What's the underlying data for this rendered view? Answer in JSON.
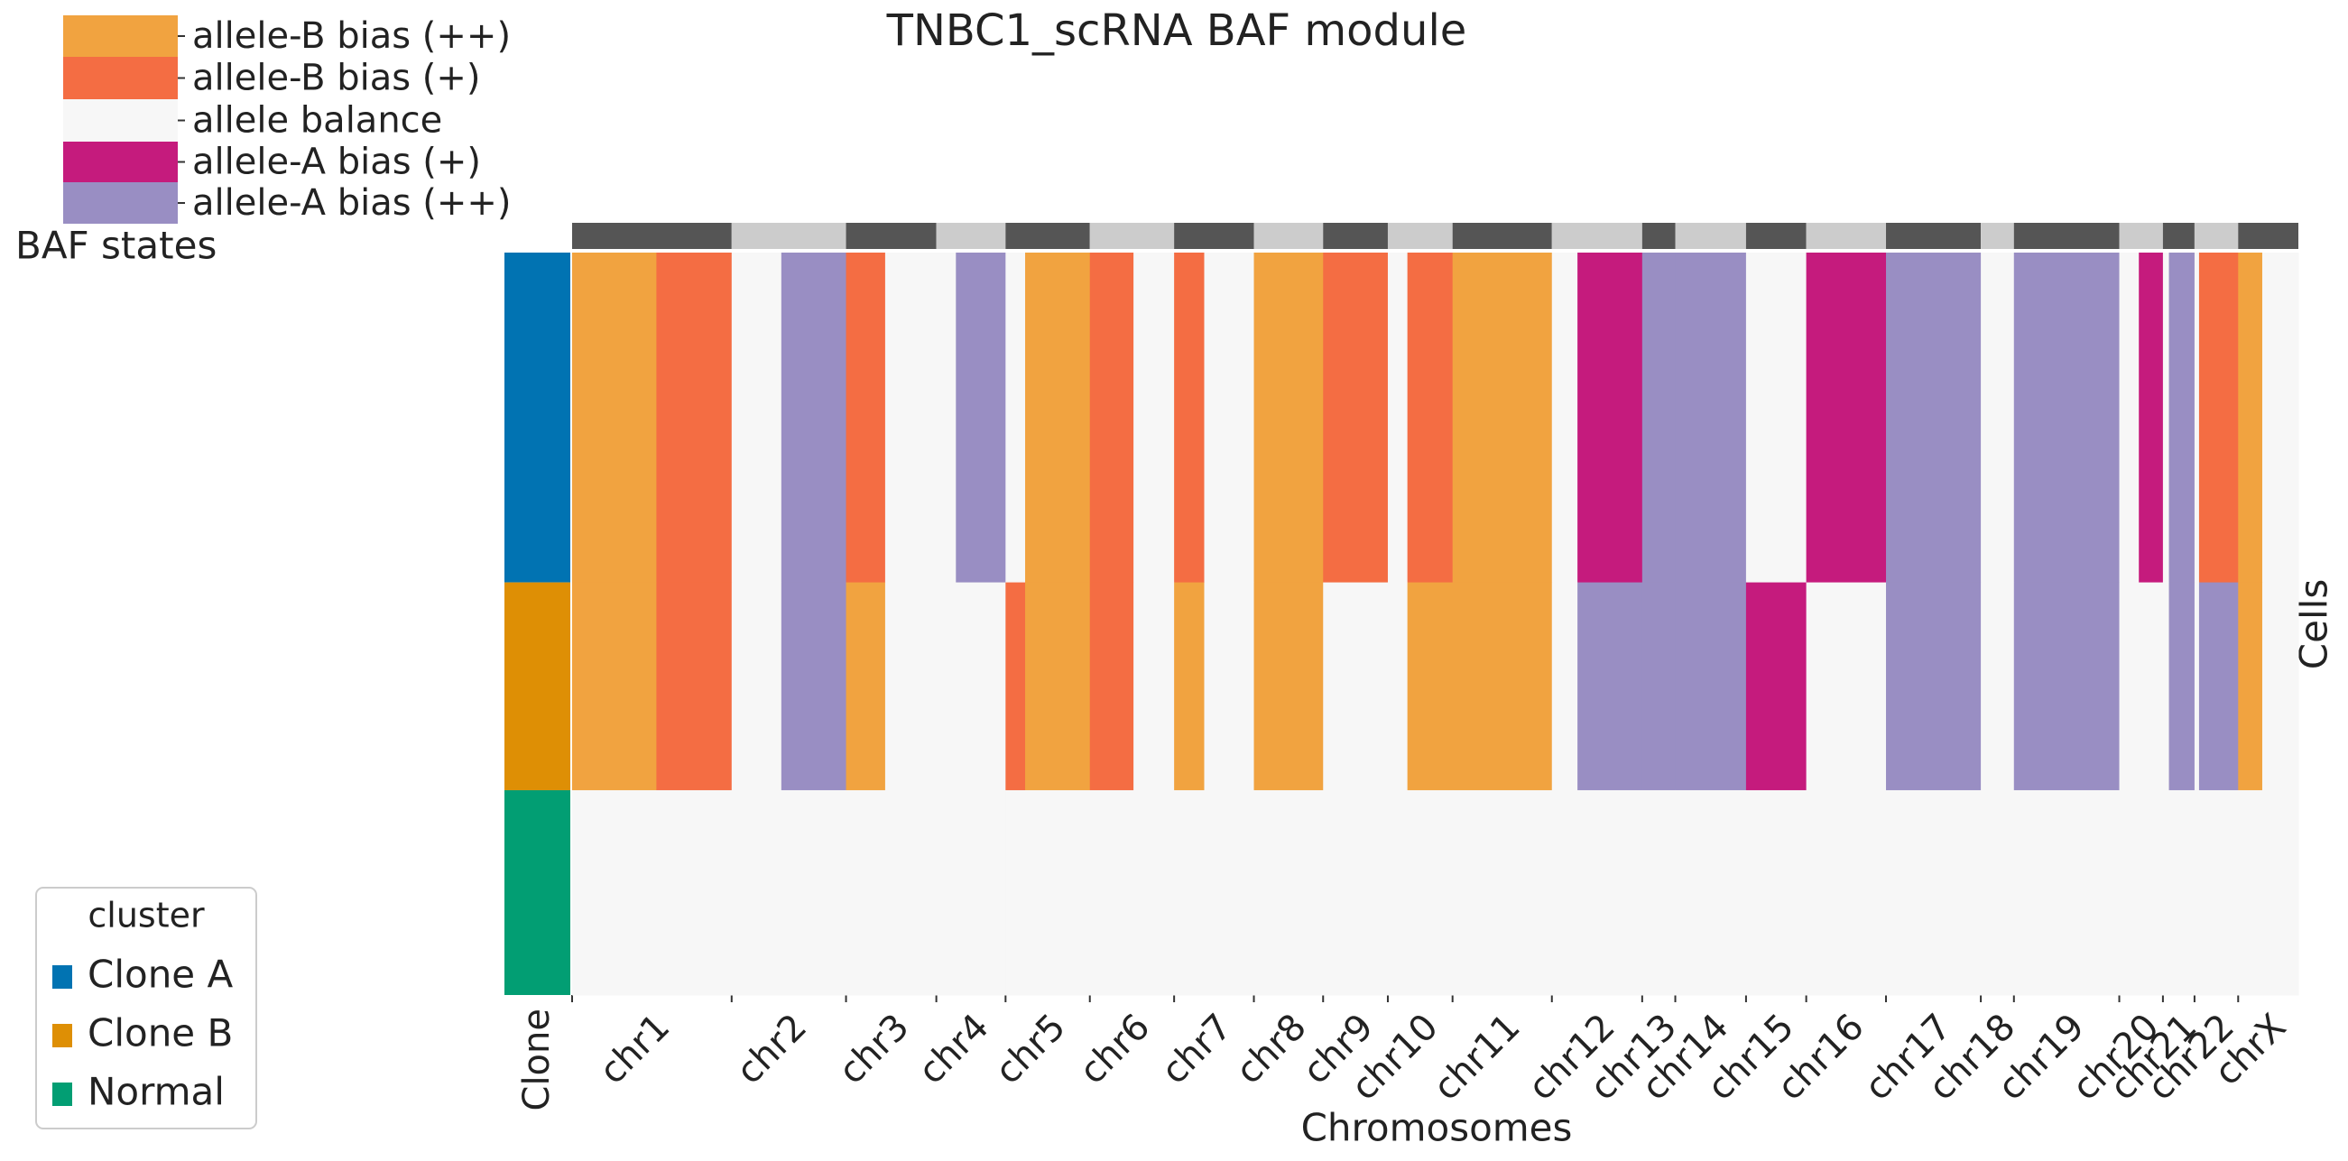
{
  "chart_data": {
    "type": "heatmap",
    "title": "TNBC1_scRNA BAF module",
    "xlabel": "Chromosomes",
    "ylabel": "Cells",
    "cluster_column_label": "Clone",
    "states_title": "BAF states",
    "states": [
      {
        "name": "allele-B bias (++)",
        "color": "#f1a340"
      },
      {
        "name": "allele-B bias (+)",
        "color": "#f46d43"
      },
      {
        "name": "allele balance",
        "color": "#f7f7f7"
      },
      {
        "name": "allele-A bias (+)",
        "color": "#c51b7d"
      },
      {
        "name": "allele-A bias (++)",
        "color": "#998ec3"
      }
    ],
    "chromosomes": [
      {
        "name": "chr1",
        "bins": 106
      },
      {
        "name": "chr2",
        "bins": 76
      },
      {
        "name": "chr3",
        "bins": 60
      },
      {
        "name": "chr4",
        "bins": 46
      },
      {
        "name": "chr5",
        "bins": 56
      },
      {
        "name": "chr6",
        "bins": 56
      },
      {
        "name": "chr7",
        "bins": 53
      },
      {
        "name": "chr8",
        "bins": 46
      },
      {
        "name": "chr9",
        "bins": 43
      },
      {
        "name": "chr10",
        "bins": 43
      },
      {
        "name": "chr11",
        "bins": 66
      },
      {
        "name": "chr12",
        "bins": 60
      },
      {
        "name": "chr13",
        "bins": 22
      },
      {
        "name": "chr14",
        "bins": 47
      },
      {
        "name": "chr15",
        "bins": 40
      },
      {
        "name": "chr16",
        "bins": 53
      },
      {
        "name": "chr17",
        "bins": 63
      },
      {
        "name": "chr18",
        "bins": 22
      },
      {
        "name": "chr19",
        "bins": 70
      },
      {
        "name": "chr20",
        "bins": 29
      },
      {
        "name": "chr21",
        "bins": 21
      },
      {
        "name": "chr22",
        "bins": 29
      },
      {
        "name": "chrX",
        "bins": 40
      }
    ],
    "cluster_title": "cluster",
    "clusters": [
      {
        "name": "Clone A",
        "color": "#0173b2",
        "cells": 219,
        "segments": [
          [
            [
              56,
              0
            ],
            [
              50,
              1
            ]
          ],
          [
            [
              33,
              2
            ],
            [
              43,
              4
            ]
          ],
          [
            [
              26,
              1
            ],
            [
              34,
              2
            ]
          ],
          [
            [
              13,
              2
            ],
            [
              33,
              4
            ]
          ],
          [
            [
              13,
              2
            ],
            [
              43,
              0
            ]
          ],
          [
            [
              29,
              1
            ],
            [
              27,
              2
            ]
          ],
          [
            [
              20,
              1
            ],
            [
              33,
              2
            ]
          ],
          [
            [
              46,
              0
            ]
          ],
          [
            [
              43,
              1
            ]
          ],
          [
            [
              13,
              2
            ],
            [
              30,
              1
            ]
          ],
          [
            [
              66,
              0
            ]
          ],
          [
            [
              17,
              2
            ],
            [
              43,
              3
            ]
          ],
          [
            [
              22,
              4
            ]
          ],
          [
            [
              47,
              4
            ]
          ],
          [
            [
              40,
              2
            ]
          ],
          [
            [
              53,
              3
            ]
          ],
          [
            [
              63,
              4
            ]
          ],
          [
            [
              22,
              2
            ]
          ],
          [
            [
              70,
              4
            ]
          ],
          [
            [
              13,
              2
            ],
            [
              16,
              3
            ]
          ],
          [
            [
              4,
              2
            ],
            [
              17,
              4
            ]
          ],
          [
            [
              3,
              2
            ],
            [
              26,
              1
            ]
          ],
          [
            [
              16,
              0
            ],
            [
              24,
              2
            ]
          ]
        ]
      },
      {
        "name": "Clone B",
        "color": "#de8f05",
        "cells": 138,
        "segments": [
          [
            [
              56,
              0
            ],
            [
              50,
              1
            ]
          ],
          [
            [
              33,
              2
            ],
            [
              43,
              4
            ]
          ],
          [
            [
              26,
              0
            ],
            [
              34,
              2
            ]
          ],
          [
            [
              46,
              2
            ]
          ],
          [
            [
              13,
              1
            ],
            [
              43,
              0
            ]
          ],
          [
            [
              29,
              1
            ],
            [
              27,
              2
            ]
          ],
          [
            [
              20,
              0
            ],
            [
              33,
              2
            ]
          ],
          [
            [
              46,
              0
            ]
          ],
          [
            [
              43,
              2
            ]
          ],
          [
            [
              13,
              2
            ],
            [
              30,
              0
            ]
          ],
          [
            [
              66,
              0
            ]
          ],
          [
            [
              17,
              2
            ],
            [
              43,
              4
            ]
          ],
          [
            [
              22,
              4
            ]
          ],
          [
            [
              47,
              4
            ]
          ],
          [
            [
              40,
              3
            ]
          ],
          [
            [
              53,
              2
            ]
          ],
          [
            [
              63,
              4
            ]
          ],
          [
            [
              22,
              2
            ]
          ],
          [
            [
              70,
              4
            ]
          ],
          [
            [
              29,
              2
            ]
          ],
          [
            [
              4,
              2
            ],
            [
              17,
              4
            ]
          ],
          [
            [
              3,
              2
            ],
            [
              26,
              4
            ]
          ],
          [
            [
              16,
              0
            ],
            [
              24,
              2
            ]
          ]
        ]
      },
      {
        "name": "Normal",
        "color": "#029e73",
        "cells": 136,
        "segments": [
          [
            [
              106,
              2
            ]
          ],
          [
            [
              76,
              2
            ]
          ],
          [
            [
              60,
              2
            ]
          ],
          [
            [
              46,
              2
            ]
          ],
          [
            [
              56,
              2
            ]
          ],
          [
            [
              56,
              2
            ]
          ],
          [
            [
              53,
              2
            ]
          ],
          [
            [
              46,
              2
            ]
          ],
          [
            [
              43,
              2
            ]
          ],
          [
            [
              43,
              2
            ]
          ],
          [
            [
              66,
              2
            ]
          ],
          [
            [
              60,
              2
            ]
          ],
          [
            [
              22,
              2
            ]
          ],
          [
            [
              47,
              2
            ]
          ],
          [
            [
              40,
              2
            ]
          ],
          [
            [
              53,
              2
            ]
          ],
          [
            [
              63,
              2
            ]
          ],
          [
            [
              22,
              2
            ]
          ],
          [
            [
              70,
              2
            ]
          ],
          [
            [
              29,
              2
            ]
          ],
          [
            [
              21,
              2
            ]
          ],
          [
            [
              29,
              2
            ]
          ],
          [
            [
              40,
              2
            ]
          ]
        ]
      }
    ]
  }
}
